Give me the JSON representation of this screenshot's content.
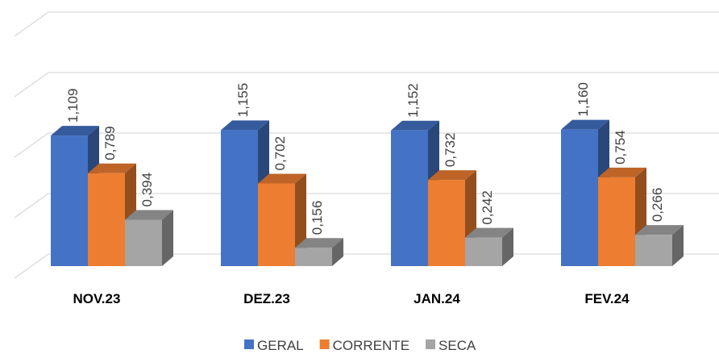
{
  "chart_data": {
    "type": "bar3d",
    "categories": [
      "NOV.23",
      "DEZ.23",
      "JAN.24",
      "FEV.24"
    ],
    "series": [
      {
        "name": "GERAL",
        "color": "#4472c4",
        "values": [
          1.109,
          1.155,
          1.152,
          1.16
        ],
        "value_labels": [
          "1,109",
          "1,155",
          "1,152",
          "1,160"
        ]
      },
      {
        "name": "CORRENTE",
        "color": "#ed7d31",
        "values": [
          0.789,
          0.702,
          0.732,
          0.754
        ],
        "value_labels": [
          "0,789",
          "0,702",
          "0,732",
          "0,754"
        ]
      },
      {
        "name": "SECA",
        "color": "#a5a5a5",
        "values": [
          0.394,
          0.156,
          0.242,
          0.266
        ],
        "value_labels": [
          "0,394",
          "0,156",
          "0,242",
          "0,266"
        ]
      }
    ],
    "ylim": [
      0,
      2
    ],
    "yticks": [
      0,
      0.5,
      1,
      1.5,
      2
    ],
    "grid": true,
    "legend": "bottom"
  }
}
